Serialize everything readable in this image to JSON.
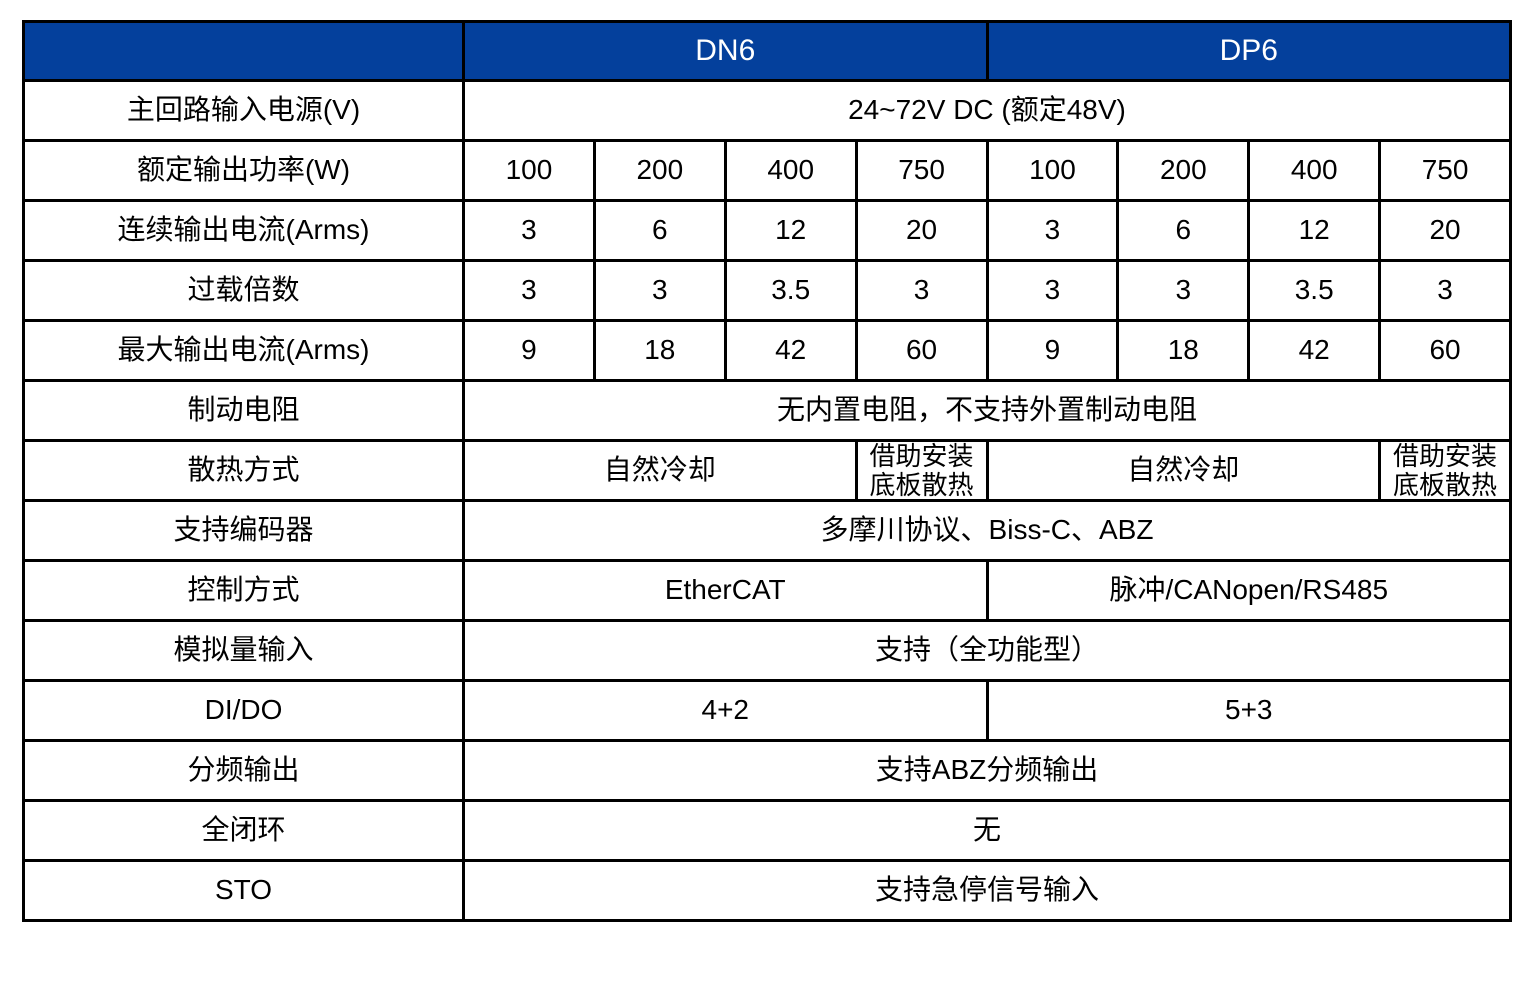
{
  "colors": {
    "header_bg": "#04409C",
    "header_text": "#FFFFFF",
    "border": "#000000",
    "text": "#000000",
    "page_bg": "#FFFFFF"
  },
  "table": {
    "header": {
      "corner_label": "",
      "groups": [
        {
          "id": "dn6",
          "label": "DN6",
          "span": 4
        },
        {
          "id": "dp6",
          "label": "DP6",
          "span": 4
        }
      ]
    },
    "rows": [
      {
        "label": "主回路输入电源(V)",
        "cells": [
          {
            "text": "24~72V DC (额定48V)",
            "span": 8
          }
        ]
      },
      {
        "label": "额定输出功率(W)",
        "cells": [
          {
            "text": "100",
            "span": 1
          },
          {
            "text": "200",
            "span": 1
          },
          {
            "text": "400",
            "span": 1
          },
          {
            "text": "750",
            "span": 1
          },
          {
            "text": "100",
            "span": 1
          },
          {
            "text": "200",
            "span": 1
          },
          {
            "text": "400",
            "span": 1
          },
          {
            "text": "750",
            "span": 1
          }
        ]
      },
      {
        "label": "连续输出电流(Arms)",
        "cells": [
          {
            "text": "3",
            "span": 1
          },
          {
            "text": "6",
            "span": 1
          },
          {
            "text": "12",
            "span": 1
          },
          {
            "text": "20",
            "span": 1
          },
          {
            "text": "3",
            "span": 1
          },
          {
            "text": "6",
            "span": 1
          },
          {
            "text": "12",
            "span": 1
          },
          {
            "text": "20",
            "span": 1
          }
        ]
      },
      {
        "label": "过载倍数",
        "cells": [
          {
            "text": "3",
            "span": 1
          },
          {
            "text": "3",
            "span": 1
          },
          {
            "text": "3.5",
            "span": 1
          },
          {
            "text": "3",
            "span": 1
          },
          {
            "text": "3",
            "span": 1
          },
          {
            "text": "3",
            "span": 1
          },
          {
            "text": "3.5",
            "span": 1
          },
          {
            "text": "3",
            "span": 1
          }
        ]
      },
      {
        "label": "最大输出电流(Arms)",
        "cells": [
          {
            "text": "9",
            "span": 1
          },
          {
            "text": "18",
            "span": 1
          },
          {
            "text": "42",
            "span": 1
          },
          {
            "text": "60",
            "span": 1
          },
          {
            "text": "9",
            "span": 1
          },
          {
            "text": "18",
            "span": 1
          },
          {
            "text": "42",
            "span": 1
          },
          {
            "text": "60",
            "span": 1
          }
        ]
      },
      {
        "label": "制动电阻",
        "cells": [
          {
            "text": "无内置电阻，不支持外置制动电阻",
            "span": 8
          }
        ]
      },
      {
        "label": "散热方式",
        "cells": [
          {
            "text": "自然冷却",
            "span": 3
          },
          {
            "text": "借助安装\n底板散热",
            "span": 1,
            "small": true
          },
          {
            "text": "自然冷却",
            "span": 3
          },
          {
            "text": "借助安装\n底板散热",
            "span": 1,
            "small": true
          }
        ]
      },
      {
        "label": "支持编码器",
        "cells": [
          {
            "text": "多摩川协议、Biss-C、ABZ",
            "span": 8
          }
        ]
      },
      {
        "label": "控制方式",
        "cells": [
          {
            "text": "EtherCAT",
            "span": 4
          },
          {
            "text": "脉冲/CANopen/RS485",
            "span": 4
          }
        ]
      },
      {
        "label": "模拟量输入",
        "cells": [
          {
            "text": "支持（全功能型）",
            "span": 8
          }
        ]
      },
      {
        "label": "DI/DO",
        "cells": [
          {
            "text": "4+2",
            "span": 4
          },
          {
            "text": "5+3",
            "span": 4
          }
        ]
      },
      {
        "label": "分频输出",
        "cells": [
          {
            "text": "支持ABZ分频输出",
            "span": 8
          }
        ]
      },
      {
        "label": "全闭环",
        "cells": [
          {
            "text": "无",
            "span": 8
          }
        ]
      },
      {
        "label": "STO",
        "cells": [
          {
            "text": "支持急停信号输入",
            "span": 8
          }
        ]
      }
    ]
  }
}
